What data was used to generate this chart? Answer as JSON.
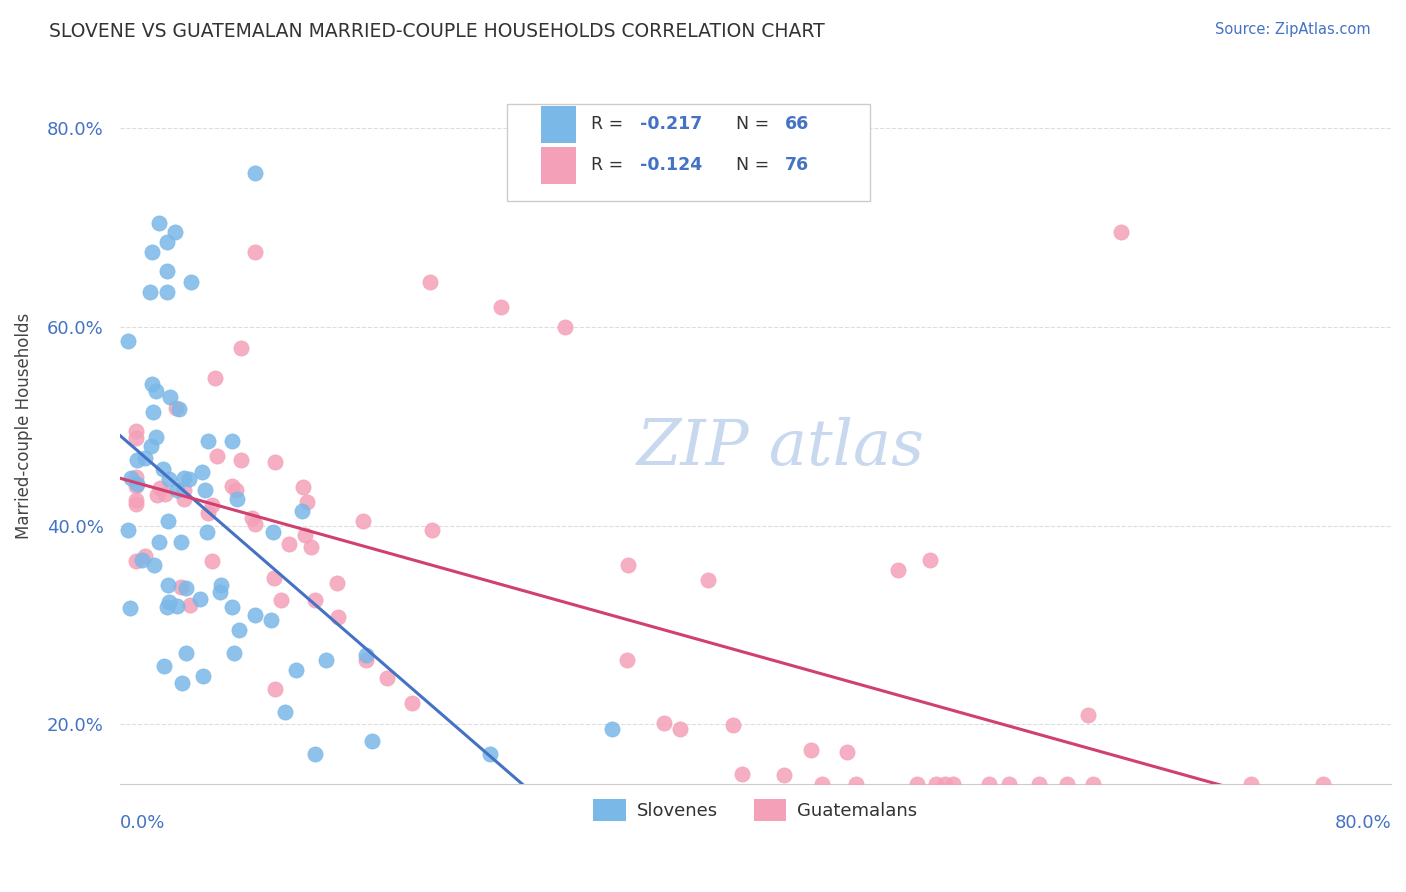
{
  "title": "SLOVENE VS GUATEMALAN MARRIED-COUPLE HOUSEHOLDS CORRELATION CHART",
  "source_text": "Source: ZipAtlas.com",
  "ylabel": "Married-couple Households",
  "xmin": 0.0,
  "xmax": 0.8,
  "ymin": 0.14,
  "ymax": 0.86,
  "yticks": [
    0.2,
    0.4,
    0.6,
    0.8
  ],
  "ytick_labels": [
    "20.0%",
    "40.0%",
    "60.0%",
    "80.0%"
  ],
  "slovene_color": "#7ab8e8",
  "guatemalan_color": "#f4a0b8",
  "slovene_line_color": "#4472C4",
  "guatemalan_line_color": "#d04070",
  "slovene_dash_color": "#aac8e8",
  "watermark": "ZIP atlas",
  "watermark_color": "#c8d8ee",
  "title_color": "#333333",
  "source_color": "#4472C4",
  "tick_color": "#4472C4",
  "grid_color": "#dddddd"
}
